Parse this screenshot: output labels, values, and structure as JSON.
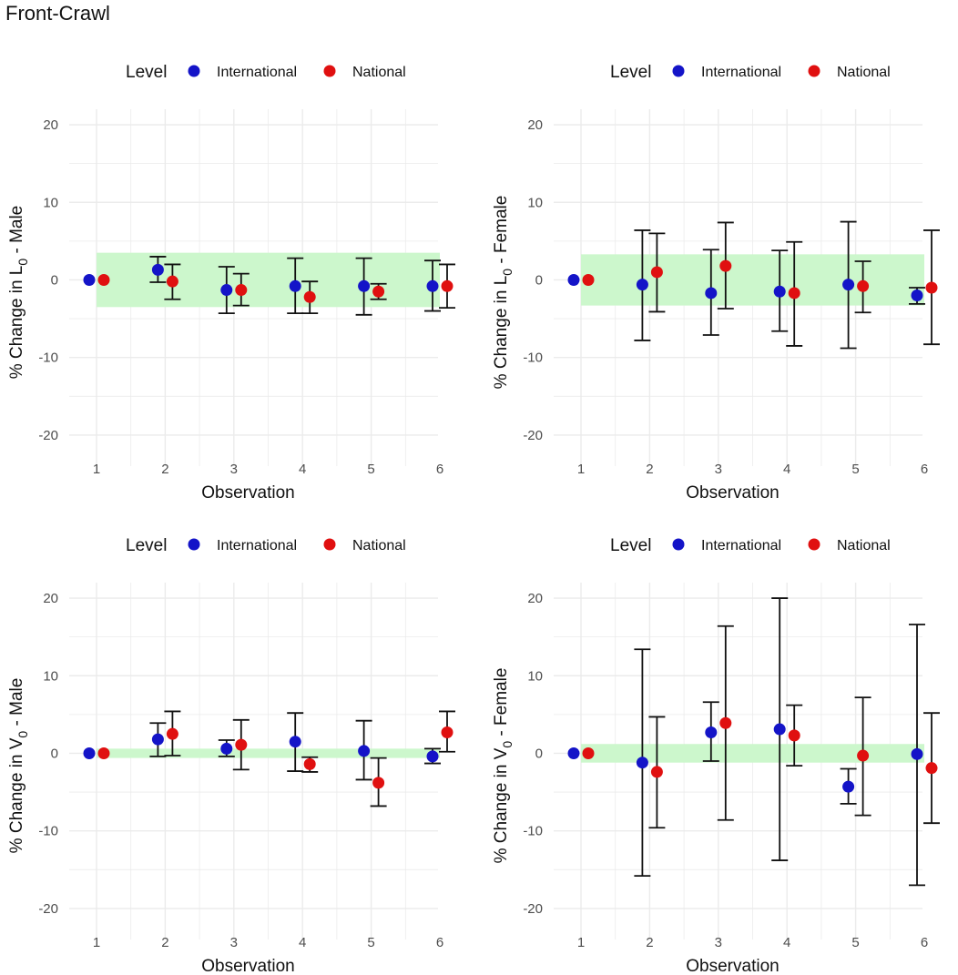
{
  "title": "Front-Crawl",
  "colors": {
    "international": "#1414c8",
    "national": "#e01010",
    "band": "#ccf7cc",
    "grid": "#ebebeb",
    "errorbar": "#111111"
  },
  "chart_data": [
    {
      "type": "scatter",
      "panel": "top-left",
      "legend_title": "Level",
      "legend_entries": [
        "International",
        "National"
      ],
      "ylabel_prefix": "% Change in ",
      "ylabel_symbol": "L",
      "ylabel_sub": "0",
      "ylabel_suffix": " - Male",
      "xlabel": "Observation",
      "x_ticks": [
        "1",
        "2",
        "3",
        "4",
        "5",
        "6"
      ],
      "y_ticks": [
        "20",
        "10",
        "0",
        "-10",
        "-20"
      ],
      "ylim": [
        -24,
        22
      ],
      "band": [
        -3.5,
        3.5
      ],
      "series": [
        {
          "name": "International",
          "x": [
            1,
            2,
            3,
            4,
            5,
            6
          ],
          "y": [
            0,
            1.3,
            -1.3,
            -0.8,
            -0.8,
            -0.8
          ],
          "lower": [
            0,
            -0.3,
            -4.3,
            -4.3,
            -4.5,
            -4.0
          ],
          "upper": [
            0,
            3.0,
            1.7,
            2.8,
            2.8,
            2.5
          ]
        },
        {
          "name": "National",
          "x": [
            1,
            2,
            3,
            4,
            5,
            6
          ],
          "y": [
            0,
            -0.2,
            -1.3,
            -2.2,
            -1.5,
            -0.8
          ],
          "lower": [
            0,
            -2.5,
            -3.3,
            -4.3,
            -2.5,
            -3.6
          ],
          "upper": [
            0,
            2.0,
            0.8,
            -0.2,
            -0.5,
            2.0
          ]
        }
      ]
    },
    {
      "type": "scatter",
      "panel": "top-right",
      "legend_title": "Level",
      "legend_entries": [
        "International",
        "National"
      ],
      "ylabel_prefix": "% Change in ",
      "ylabel_symbol": "L",
      "ylabel_sub": "0",
      "ylabel_suffix": " - Female",
      "xlabel": "Observation",
      "x_ticks": [
        "1",
        "2",
        "3",
        "4",
        "5",
        "6"
      ],
      "y_ticks": [
        "20",
        "10",
        "0",
        "-10",
        "-20"
      ],
      "ylim": [
        -24,
        22
      ],
      "band": [
        -3.3,
        3.3
      ],
      "series": [
        {
          "name": "International",
          "x": [
            1,
            2,
            3,
            4,
            5,
            6
          ],
          "y": [
            0,
            -0.6,
            -1.7,
            -1.5,
            -0.6,
            -2.0
          ],
          "lower": [
            0,
            -7.8,
            -7.1,
            -6.6,
            -8.8,
            -3.1
          ],
          "upper": [
            0,
            6.4,
            3.9,
            3.8,
            7.5,
            -1.0
          ]
        },
        {
          "name": "National",
          "x": [
            1,
            2,
            3,
            4,
            5,
            6
          ],
          "y": [
            0,
            1.0,
            1.8,
            -1.7,
            -0.8,
            -1.0
          ],
          "lower": [
            0,
            -4.1,
            -3.7,
            -8.5,
            -4.2,
            -8.3
          ],
          "upper": [
            0,
            6.0,
            7.4,
            4.9,
            2.4,
            6.4
          ]
        }
      ]
    },
    {
      "type": "scatter",
      "panel": "bottom-left",
      "legend_title": "Level",
      "legend_entries": [
        "International",
        "National"
      ],
      "ylabel_prefix": "% Change in ",
      "ylabel_symbol": "V",
      "ylabel_sub": "0",
      "ylabel_suffix": " - Male",
      "xlabel": "Observation",
      "x_ticks": [
        "1",
        "2",
        "3",
        "4",
        "5",
        "6"
      ],
      "y_ticks": [
        "20",
        "10",
        "0",
        "-10",
        "-20"
      ],
      "ylim": [
        -24,
        22
      ],
      "band": [
        -0.6,
        0.6
      ],
      "series": [
        {
          "name": "International",
          "x": [
            1,
            2,
            3,
            4,
            5,
            6
          ],
          "y": [
            0,
            1.8,
            0.6,
            1.5,
            0.3,
            -0.4
          ],
          "lower": [
            0,
            -0.4,
            -0.4,
            -2.3,
            -3.4,
            -1.3
          ],
          "upper": [
            0,
            3.9,
            1.7,
            5.2,
            4.2,
            0.6
          ]
        },
        {
          "name": "National",
          "x": [
            1,
            2,
            3,
            4,
            5,
            6
          ],
          "y": [
            0,
            2.5,
            1.1,
            -1.4,
            -3.8,
            2.7
          ],
          "lower": [
            0,
            -0.3,
            -2.1,
            -2.4,
            -6.8,
            0.2
          ],
          "upper": [
            0,
            5.4,
            4.3,
            -0.5,
            -0.6,
            5.4
          ]
        }
      ]
    },
    {
      "type": "scatter",
      "panel": "bottom-right",
      "legend_title": "Level",
      "legend_entries": [
        "International",
        "National"
      ],
      "ylabel_prefix": "% Change in ",
      "ylabel_symbol": "V",
      "ylabel_sub": "0",
      "ylabel_suffix": " - Female",
      "xlabel": "Observation",
      "x_ticks": [
        "1",
        "2",
        "3",
        "4",
        "5",
        "6"
      ],
      "y_ticks": [
        "20",
        "10",
        "0",
        "-10",
        "-20"
      ],
      "ylim": [
        -24,
        22
      ],
      "band": [
        -1.2,
        1.2
      ],
      "series": [
        {
          "name": "International",
          "x": [
            1,
            2,
            3,
            4,
            5,
            6
          ],
          "y": [
            0,
            -1.2,
            2.7,
            3.1,
            -4.3,
            -0.1
          ],
          "lower": [
            0,
            -15.8,
            -1.0,
            -13.8,
            -6.5,
            -17.0
          ],
          "upper": [
            0,
            13.4,
            6.6,
            20.0,
            -2.0,
            16.6
          ]
        },
        {
          "name": "National",
          "x": [
            1,
            2,
            3,
            4,
            5,
            6
          ],
          "y": [
            0,
            -2.4,
            3.9,
            2.3,
            -0.3,
            -1.9
          ],
          "lower": [
            0,
            -9.6,
            -8.6,
            -1.6,
            -8.0,
            -9.0
          ],
          "upper": [
            0,
            4.7,
            16.4,
            6.2,
            7.2,
            5.2
          ]
        }
      ]
    }
  ]
}
